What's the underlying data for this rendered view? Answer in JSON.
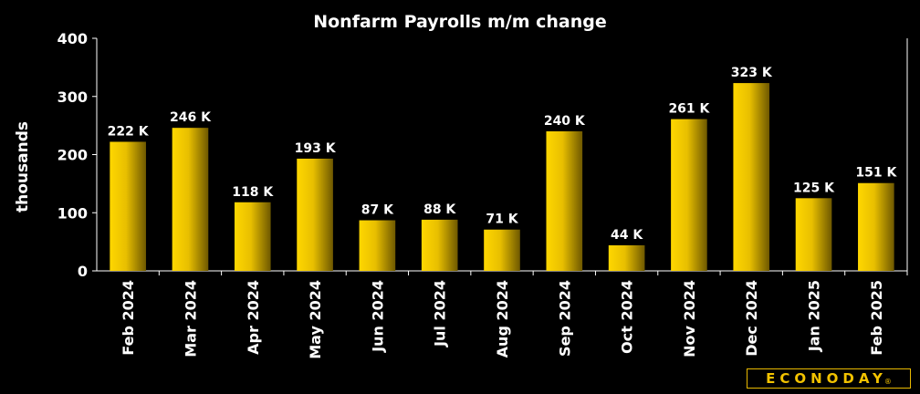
{
  "chart_data": {
    "type": "bar",
    "title": "Nonfarm Payrolls m/m change",
    "ylabel": "thousands",
    "xlabel": "",
    "categories": [
      "Feb 2024",
      "Mar 2024",
      "Apr 2024",
      "May 2024",
      "Jun 2024",
      "Jul 2024",
      "Aug 2024",
      "Sep 2024",
      "Oct 2024",
      "Nov 2024",
      "Dec 2024",
      "Jan 2025",
      "Feb 2025"
    ],
    "values": [
      222,
      246,
      118,
      193,
      87,
      88,
      71,
      240,
      44,
      261,
      323,
      125,
      151
    ],
    "data_labels": [
      "222 K",
      "246 K",
      "118 K",
      "193 K",
      "87 K",
      "88 K",
      "71 K",
      "240 K",
      "44 K",
      "261 K",
      "323 K",
      "125 K",
      "151 K"
    ],
    "ylim": [
      0,
      400
    ],
    "yticks": [
      0,
      100,
      200,
      300,
      400
    ],
    "grid": false,
    "legend": "none",
    "colors": {
      "bar_light": "#ffd700",
      "bar_dark": "#6e5800",
      "background": "#000000",
      "text": "#ffffff"
    }
  },
  "logo": {
    "text": "ECONODAY",
    "mark": "®"
  }
}
